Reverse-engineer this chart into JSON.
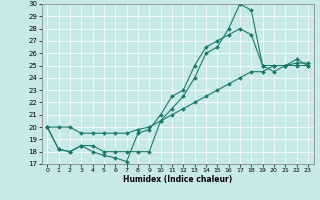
{
  "xlabel": "Humidex (Indice chaleur)",
  "background_color": "#c8eae4",
  "line_color": "#1a7a6a",
  "ylim": [
    17,
    30
  ],
  "xlim": [
    -0.5,
    23.5
  ],
  "yticks": [
    17,
    18,
    19,
    20,
    21,
    22,
    23,
    24,
    25,
    26,
    27,
    28,
    29,
    30
  ],
  "xticks": [
    0,
    1,
    2,
    3,
    4,
    5,
    6,
    7,
    8,
    9,
    10,
    11,
    12,
    13,
    14,
    15,
    16,
    17,
    18,
    19,
    20,
    21,
    22,
    23
  ],
  "series": [
    {
      "x": [
        0,
        1,
        2,
        3,
        4,
        5,
        6,
        7,
        8,
        9,
        10,
        11,
        12,
        13,
        14,
        15,
        16,
        17,
        18,
        19,
        20,
        21,
        22,
        23
      ],
      "y": [
        20,
        20,
        20,
        19.5,
        19.5,
        19.5,
        19.5,
        19.5,
        19.8,
        20,
        20.5,
        21,
        21.5,
        22,
        22.5,
        23,
        23.5,
        24,
        24.5,
        24.5,
        25,
        25,
        25.2,
        25.2
      ]
    },
    {
      "x": [
        0,
        1,
        2,
        3,
        4,
        5,
        6,
        7,
        8,
        9,
        10,
        11,
        12,
        13,
        14,
        15,
        16,
        17,
        18,
        19,
        20,
        21,
        22,
        23
      ],
      "y": [
        20,
        18.2,
        18,
        18.5,
        18,
        17.7,
        17.5,
        17.2,
        19.5,
        19.8,
        21,
        22.5,
        23,
        25,
        26.5,
        27,
        27.5,
        28,
        27.5,
        25,
        24.5,
        25,
        25,
        25
      ]
    },
    {
      "x": [
        0,
        1,
        2,
        3,
        4,
        5,
        6,
        7,
        8,
        9,
        10,
        11,
        12,
        13,
        14,
        15,
        16,
        17,
        18,
        19,
        20,
        21,
        22,
        23
      ],
      "y": [
        20,
        18.2,
        18,
        18.5,
        18.5,
        18,
        18,
        18,
        18,
        18,
        20.5,
        21.5,
        22.5,
        24,
        26,
        26.5,
        28,
        30,
        29.5,
        25,
        25,
        25,
        25.5,
        25
      ]
    }
  ]
}
